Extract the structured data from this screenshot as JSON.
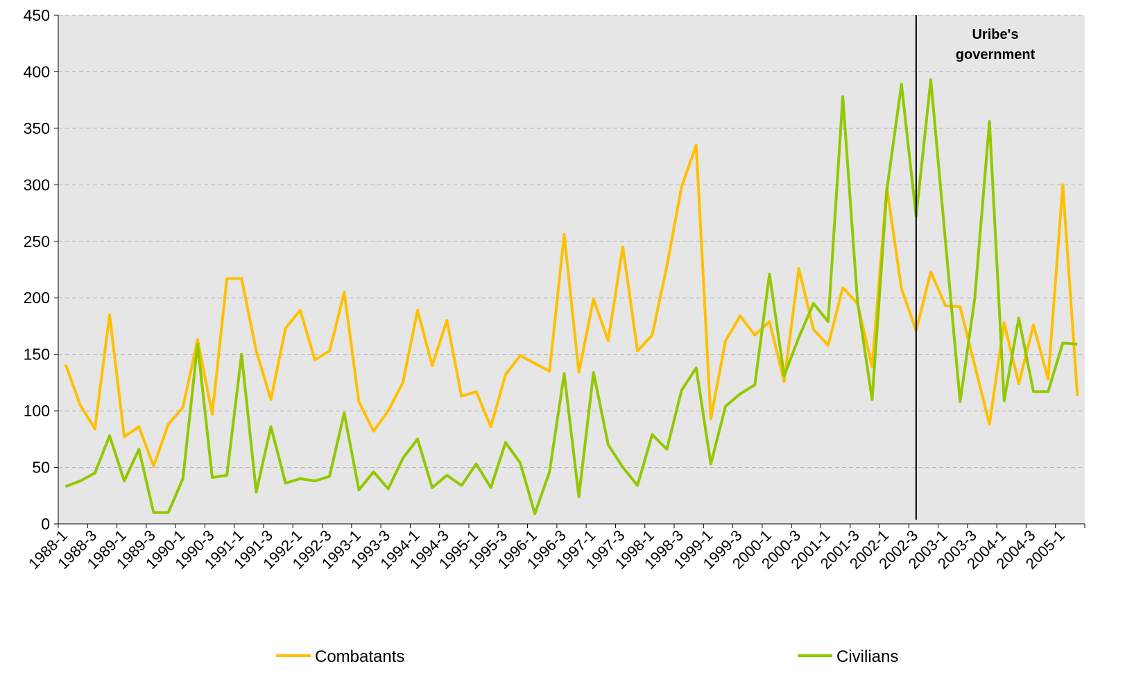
{
  "chart_data": {
    "type": "line",
    "categories": [
      "1988-1",
      null,
      "1988-3",
      null,
      "1989-1",
      null,
      "1989-3",
      null,
      "1990-1",
      null,
      "1990-3",
      null,
      "1991-1",
      null,
      "1991-3",
      null,
      "1992-1",
      null,
      "1992-3",
      null,
      "1993-1",
      null,
      "1993-3",
      null,
      "1994-1",
      null,
      "1994-3",
      null,
      "1995-1",
      null,
      "1995-3",
      null,
      "1996-1",
      null,
      "1996-3",
      null,
      "1997-1",
      null,
      "1997-3",
      null,
      "1998-1",
      null,
      "1998-3",
      null,
      "1999-1",
      null,
      "1999-3",
      null,
      "2000-1",
      null,
      "2000-3",
      null,
      "2001-1",
      null,
      "2001-3",
      null,
      "2002-1",
      null,
      "2002-3",
      null,
      "2003-1",
      null,
      "2003-3",
      null,
      "2004-1",
      null,
      "2004-3",
      null,
      "2005-1",
      null
    ],
    "series": [
      {
        "name": "Combatants",
        "color": "#ffc000",
        "values": [
          141,
          105,
          84,
          185,
          77,
          86,
          51,
          88,
          103,
          163,
          97,
          217,
          217,
          153,
          110,
          173,
          189,
          145,
          153,
          205,
          108,
          82,
          100,
          125,
          189,
          140,
          180,
          113,
          117,
          86,
          132,
          149,
          142,
          135,
          256,
          134,
          199,
          162,
          245,
          153,
          167,
          228,
          298,
          335,
          93,
          162,
          184,
          167,
          179,
          126,
          226,
          172,
          158,
          209,
          195,
          139,
          298,
          208,
          171,
          223,
          193,
          192,
          140,
          88,
          178,
          124,
          176,
          128,
          300,
          113
        ]
      },
      {
        "name": "Civilians",
        "color": "#92c800",
        "values": [
          33,
          38,
          45,
          78,
          38,
          66,
          10,
          10,
          40,
          159,
          41,
          43,
          150,
          28,
          86,
          36,
          40,
          38,
          42,
          98,
          30,
          46,
          31,
          58,
          75,
          32,
          43,
          34,
          53,
          32,
          72,
          54,
          9,
          46,
          133,
          24,
          134,
          70,
          50,
          34,
          79,
          66,
          118,
          138,
          53,
          104,
          115,
          123,
          221,
          131,
          165,
          195,
          179,
          378,
          197,
          110,
          295,
          389,
          272,
          393,
          250,
          108,
          200,
          356,
          109,
          182,
          117,
          117,
          160,
          159
        ]
      }
    ],
    "ylim": [
      0,
      450
    ],
    "yticks": [
      0,
      50,
      100,
      150,
      200,
      250,
      300,
      350,
      400,
      450
    ],
    "grid": true,
    "legend": "bottom",
    "annotation": {
      "text": [
        "Uribe's",
        "government"
      ],
      "category": "2002-3"
    }
  }
}
